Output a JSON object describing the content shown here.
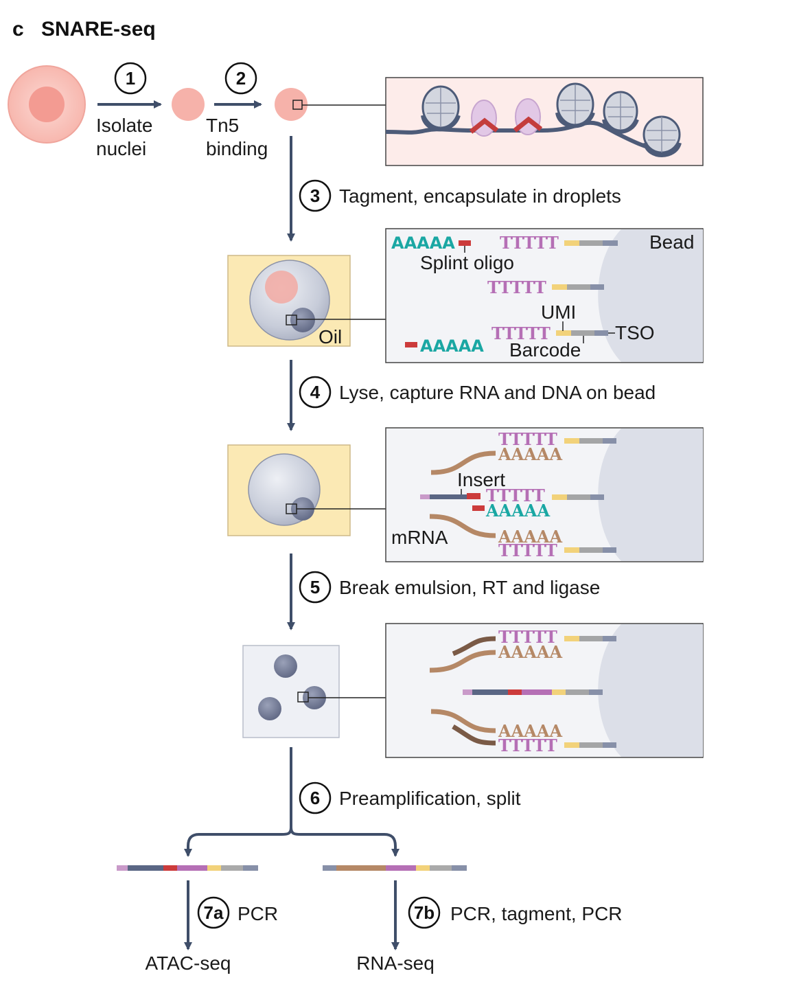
{
  "panel": {
    "letter": "c",
    "title": "SNARE-seq"
  },
  "steps": {
    "s1": {
      "num": "1",
      "label_line1": "Isolate",
      "label_line2": "nuclei"
    },
    "s2": {
      "num": "2",
      "label_line1": "Tn5",
      "label_line2": "binding"
    },
    "s3": {
      "num": "3",
      "label": "Tagment, encapsulate in droplets"
    },
    "s4": {
      "num": "4",
      "label": "Lyse, capture RNA and DNA on bead"
    },
    "s5": {
      "num": "5",
      "label": "Break emulsion, RT and ligase"
    },
    "s6": {
      "num": "6",
      "label": "Preamplification, split"
    },
    "s7a": {
      "num": "7a",
      "label": "PCR"
    },
    "s7b": {
      "num": "7b",
      "label": "PCR, tagment, PCR"
    }
  },
  "labels": {
    "oil": "Oil",
    "bead": "Bead",
    "splint_oligo": "Splint oligo",
    "umi": "UMI",
    "tso": "TSO",
    "barcode": "Barcode",
    "insert": "Insert",
    "mrna": "mRNA",
    "atac_seq": "ATAC-seq",
    "rna_seq": "RNA-seq"
  },
  "sequences": {
    "polyT": "TTTTT",
    "polyA": "AAAAA"
  },
  "colors": {
    "arrow": "#3f4e69",
    "cell_pink": "#f4a9a2",
    "oil_yellow": "#fbe9b4",
    "bead_gray": "#dcdfe8",
    "polyT": "#b56fb5",
    "polyA_teal": "#1aa7a3",
    "mrna_brown": "#b58866",
    "splint_red": "#cc3b3b",
    "umi_yellow": "#f2d27a",
    "tso_gray": "#8790a8"
  }
}
